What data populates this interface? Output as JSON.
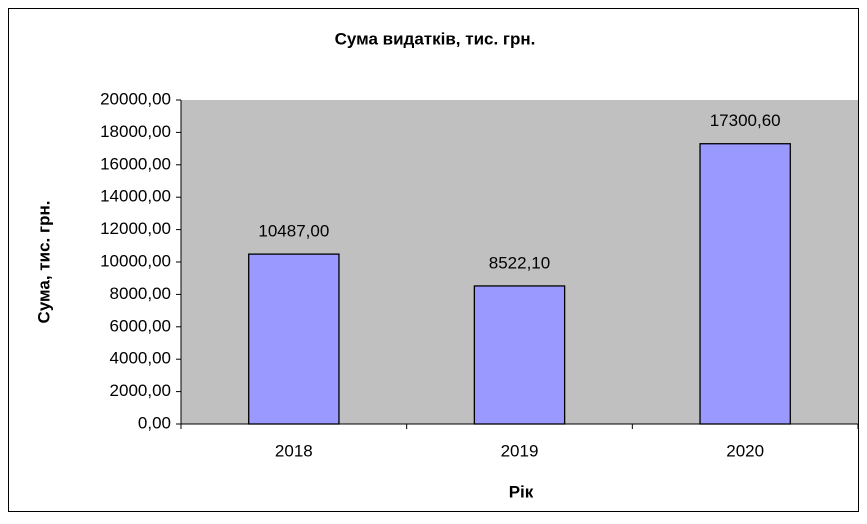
{
  "chart_data": {
    "type": "bar",
    "title": "Сума видатків, тис. грн.",
    "x_label": "Рік",
    "y_label": "Сума, тис. грн.",
    "categories": [
      "2018",
      "2019",
      "2020"
    ],
    "values": [
      10487.0,
      8522.1,
      17300.6
    ],
    "value_labels": [
      "10487,00",
      "8522,10",
      "17300,60"
    ],
    "color": "#9999ff",
    "ylim": [
      0,
      20000
    ],
    "yticks": [
      {
        "value": 0,
        "label": "0,00"
      },
      {
        "value": 2000,
        "label": "2000,00"
      },
      {
        "value": 4000,
        "label": "4000,00"
      },
      {
        "value": 6000,
        "label": "6000,00"
      },
      {
        "value": 8000,
        "label": "8000,00"
      },
      {
        "value": 10000,
        "label": "10000,00"
      },
      {
        "value": 12000,
        "label": "12000,00"
      },
      {
        "value": 14000,
        "label": "14000,00"
      },
      {
        "value": 16000,
        "label": "16000,00"
      },
      {
        "value": 18000,
        "label": "18000,00"
      },
      {
        "value": 20000,
        "label": "20000,00"
      }
    ],
    "grid": false
  }
}
